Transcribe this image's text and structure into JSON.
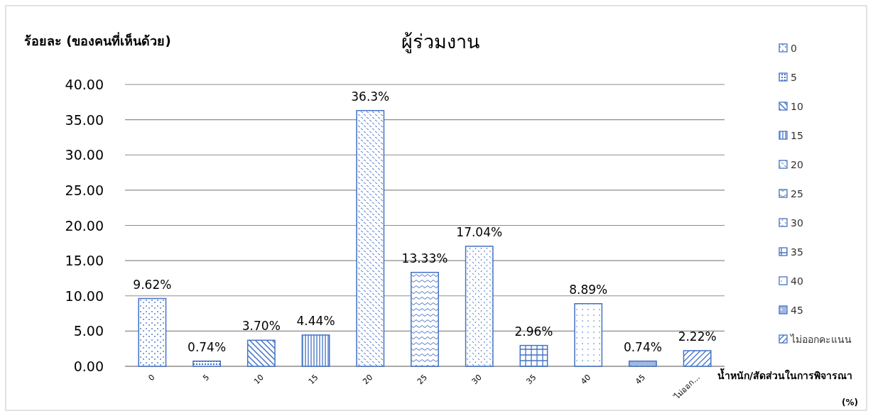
{
  "chart_data": {
    "type": "bar",
    "title": "ผู้ร่วมงาน",
    "ylabel": "ร้อยละ (ของคนที่เห็นด้วย)",
    "xlabel": "น้ำหนัก/สัดส่วนในการพิจารณา\n(%)",
    "categories": [
      "0",
      "5",
      "10",
      "15",
      "20",
      "25",
      "30",
      "35",
      "40",
      "45",
      "ไม่ออก..."
    ],
    "ylim": [
      0,
      40
    ],
    "yticks": [
      {
        "value": 0,
        "label": "0.00"
      },
      {
        "value": 5,
        "label": "5.00"
      },
      {
        "value": 10,
        "label": "10.00"
      },
      {
        "value": 15,
        "label": "15.00"
      },
      {
        "value": 20,
        "label": "20.00"
      },
      {
        "value": 25,
        "label": "25.00"
      },
      {
        "value": 30,
        "label": "30.00"
      },
      {
        "value": 35,
        "label": "35.00"
      },
      {
        "value": 40,
        "label": "40.00"
      }
    ],
    "grid": "y",
    "legend": "right",
    "series": [
      {
        "name": "0",
        "color": "#4472c4",
        "values": [
          9.62,
          null,
          null,
          null,
          null,
          null,
          null,
          null,
          null,
          null,
          null
        ],
        "value_labels": [
          "9.62%",
          null,
          null,
          null,
          null,
          null,
          null,
          null,
          null,
          null,
          null
        ]
      },
      {
        "name": "5",
        "color": "#4472c4",
        "values": [
          null,
          0.74,
          null,
          null,
          null,
          null,
          null,
          null,
          null,
          null,
          null
        ],
        "value_labels": [
          null,
          "0.74%",
          null,
          null,
          null,
          null,
          null,
          null,
          null,
          null,
          null
        ]
      },
      {
        "name": "10",
        "color": "#4472c4",
        "values": [
          null,
          null,
          3.7,
          null,
          null,
          null,
          null,
          null,
          null,
          null,
          null
        ],
        "value_labels": [
          null,
          null,
          "3.70%",
          null,
          null,
          null,
          null,
          null,
          null,
          null,
          null
        ]
      },
      {
        "name": "15",
        "color": "#4472c4",
        "values": [
          null,
          null,
          null,
          4.44,
          null,
          null,
          null,
          null,
          null,
          null,
          null
        ],
        "value_labels": [
          null,
          null,
          null,
          "4.44%",
          null,
          null,
          null,
          null,
          null,
          null,
          null
        ]
      },
      {
        "name": "20",
        "color": "#4472c4",
        "values": [
          null,
          null,
          null,
          null,
          36.3,
          null,
          null,
          null,
          null,
          null,
          null
        ],
        "value_labels": [
          null,
          null,
          null,
          null,
          "36.3%",
          null,
          null,
          null,
          null,
          null,
          null
        ]
      },
      {
        "name": "25",
        "color": "#4472c4",
        "values": [
          null,
          null,
          null,
          null,
          null,
          13.33,
          null,
          null,
          null,
          null,
          null
        ],
        "value_labels": [
          null,
          null,
          null,
          null,
          null,
          "13.33%",
          null,
          null,
          null,
          null,
          null
        ]
      },
      {
        "name": "30",
        "color": "#4472c4",
        "values": [
          null,
          null,
          null,
          null,
          null,
          null,
          17.04,
          null,
          null,
          null,
          null
        ],
        "value_labels": [
          null,
          null,
          null,
          null,
          null,
          null,
          "17.04%",
          null,
          null,
          null,
          null
        ]
      },
      {
        "name": "35",
        "color": "#4472c4",
        "values": [
          null,
          null,
          null,
          null,
          null,
          null,
          null,
          2.96,
          null,
          null,
          null
        ],
        "value_labels": [
          null,
          null,
          null,
          null,
          null,
          null,
          null,
          "2.96%",
          null,
          null,
          null
        ]
      },
      {
        "name": "40",
        "color": "#4472c4",
        "values": [
          null,
          null,
          null,
          null,
          null,
          null,
          null,
          null,
          8.89,
          null,
          null
        ],
        "value_labels": [
          null,
          null,
          null,
          null,
          null,
          null,
          null,
          null,
          "8.89%",
          null,
          null
        ]
      },
      {
        "name": "45",
        "color": "#4472c4",
        "values": [
          null,
          null,
          null,
          null,
          null,
          null,
          null,
          null,
          null,
          0.74,
          null
        ],
        "value_labels": [
          null,
          null,
          null,
          null,
          null,
          null,
          null,
          null,
          null,
          "0.74%",
          null
        ]
      },
      {
        "name": "ไม่ออกคะแนน",
        "color": "#4472c4",
        "values": [
          null,
          null,
          null,
          null,
          null,
          null,
          null,
          null,
          null,
          null,
          2.22
        ],
        "value_labels": [
          null,
          null,
          null,
          null,
          null,
          null,
          null,
          null,
          null,
          null,
          "2.22%"
        ]
      }
    ]
  }
}
